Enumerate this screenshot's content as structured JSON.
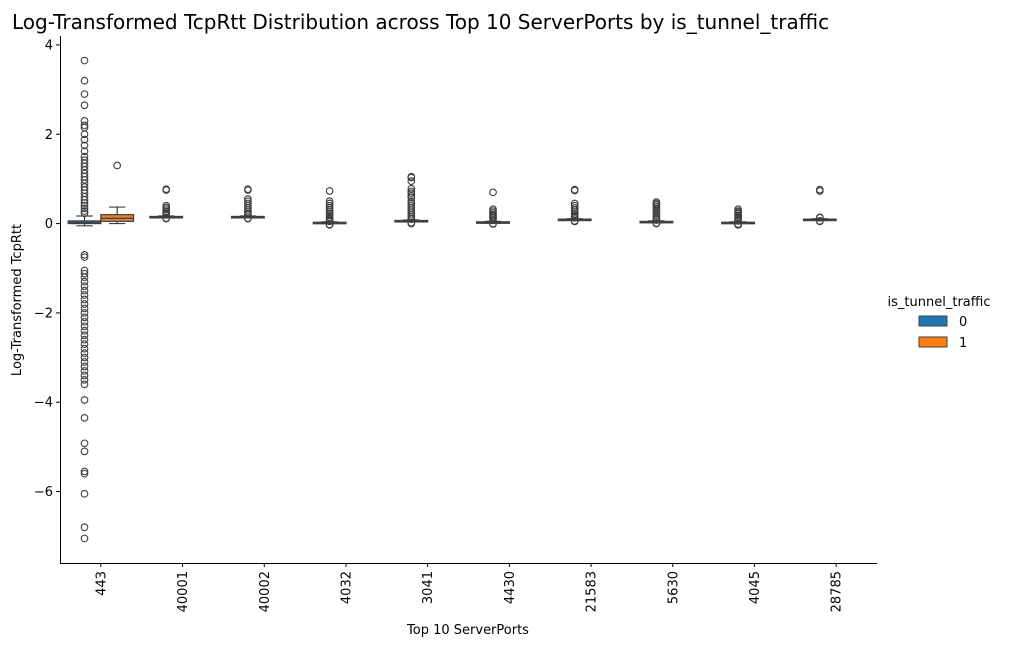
{
  "chart_data": {
    "type": "box",
    "title": "Log-Transformed TcpRtt Distribution across Top 10 ServerPorts by is_tunnel_traffic",
    "xlabel": "Top 10 ServerPorts",
    "ylabel": "Log-Transformed TcpRtt",
    "categories": [
      "443",
      "40001",
      "40002",
      "4032",
      "3041",
      "4430",
      "21583",
      "5630",
      "4045",
      "28785"
    ],
    "ylim": [
      -7.6,
      4.2
    ],
    "yticks": [
      -6,
      -4,
      -2,
      0,
      2,
      4
    ],
    "yticklabels": [
      "−6",
      "−4",
      "−2",
      "0",
      "2",
      "4"
    ],
    "grid": false,
    "legend": {
      "title": "is_tunnel_traffic",
      "placement": "right",
      "entries": [
        {
          "label": "0",
          "color": "#1f77b4"
        },
        {
          "label": "1",
          "color": "#ff7f0e"
        }
      ]
    },
    "series": [
      {
        "name": "0",
        "color": "#2f6f9f",
        "boxes": [
          {
            "category": "443",
            "whisker_low": -0.05,
            "q1": 0.0,
            "median": 0.02,
            "q3": 0.06,
            "whisker_high": 0.17,
            "outliers": [
              3.65,
              3.2,
              2.9,
              2.65,
              2.3,
              2.2,
              2.15,
              2.0,
              1.88,
              1.75,
              1.62,
              1.5,
              1.42,
              1.35,
              1.28,
              1.2,
              1.12,
              1.05,
              0.98,
              0.9,
              0.82,
              0.75,
              0.68,
              0.6,
              0.53,
              0.46,
              0.4,
              0.34,
              0.28,
              0.23,
              -0.7,
              -0.75,
              -1.05,
              -1.12,
              -1.2,
              -1.3,
              -1.4,
              -1.5,
              -1.6,
              -1.7,
              -1.8,
              -1.9,
              -2.0,
              -2.1,
              -2.2,
              -2.3,
              -2.4,
              -2.5,
              -2.6,
              -2.7,
              -2.8,
              -2.9,
              -3.0,
              -3.1,
              -3.2,
              -3.3,
              -3.4,
              -3.5,
              -3.6,
              -3.95,
              -4.35,
              -4.92,
              -5.1,
              -5.55,
              -5.6,
              -6.05,
              -6.8,
              -7.05
            ]
          },
          {
            "category": "40001",
            "whisker_low": 0.13,
            "q1": 0.14,
            "median": 0.15,
            "q3": 0.16,
            "whisker_high": 0.17,
            "outliers": [
              0.77,
              0.75,
              0.4,
              0.36,
              0.32,
              0.28,
              0.25,
              0.22,
              0.2,
              0.12,
              0.11
            ]
          },
          {
            "category": "40002",
            "whisker_low": 0.13,
            "q1": 0.14,
            "median": 0.15,
            "q3": 0.16,
            "whisker_high": 0.17,
            "outliers": [
              0.77,
              0.75,
              0.55,
              0.5,
              0.45,
              0.4,
              0.35,
              0.3,
              0.26,
              0.22,
              0.2,
              0.12,
              0.11
            ]
          },
          {
            "category": "4032",
            "whisker_low": 0.0,
            "q1": 0.01,
            "median": 0.02,
            "q3": 0.03,
            "whisker_high": 0.04,
            "outliers": [
              0.73,
              0.5,
              0.45,
              0.4,
              0.35,
              0.3,
              0.26,
              0.22,
              0.18,
              0.14,
              0.1,
              0.07,
              0.05,
              -0.02,
              -0.03
            ]
          },
          {
            "category": "3041",
            "whisker_low": 0.04,
            "q1": 0.05,
            "median": 0.06,
            "q3": 0.07,
            "whisker_high": 0.08,
            "outliers": [
              1.05,
              1.03,
              0.95,
              0.78,
              0.72,
              0.68,
              0.62,
              0.58,
              0.5,
              0.45,
              0.4,
              0.35,
              0.3,
              0.25,
              0.2,
              0.16,
              0.12,
              0.1,
              0.02,
              0.0
            ]
          },
          {
            "category": "4430",
            "whisker_low": 0.01,
            "q1": 0.02,
            "median": 0.03,
            "q3": 0.04,
            "whisker_high": 0.05,
            "outliers": [
              0.7,
              0.32,
              0.28,
              0.24,
              0.2,
              0.17,
              0.14,
              0.1,
              0.07,
              0.0,
              -0.01
            ]
          },
          {
            "category": "21583",
            "whisker_low": 0.07,
            "q1": 0.08,
            "median": 0.09,
            "q3": 0.1,
            "whisker_high": 0.11,
            "outliers": [
              0.76,
              0.74,
              0.45,
              0.4,
              0.35,
              0.3,
              0.26,
              0.22,
              0.18,
              0.15,
              0.13,
              0.06,
              0.05
            ]
          },
          {
            "category": "5630",
            "whisker_low": 0.02,
            "q1": 0.03,
            "median": 0.04,
            "q3": 0.05,
            "whisker_high": 0.06,
            "outliers": [
              0.48,
              0.45,
              0.42,
              0.38,
              0.34,
              0.3,
              0.26,
              0.22,
              0.18,
              0.14,
              0.1,
              0.08,
              0.01,
              0.0
            ]
          },
          {
            "category": "4045",
            "whisker_low": 0.0,
            "q1": 0.01,
            "median": 0.02,
            "q3": 0.03,
            "whisker_high": 0.04,
            "outliers": [
              0.32,
              0.28,
              0.25,
              0.22,
              0.18,
              0.15,
              0.12,
              0.09,
              0.06,
              -0.01,
              -0.02,
              -0.03
            ]
          },
          {
            "category": "28785",
            "whisker_low": 0.07,
            "q1": 0.08,
            "median": 0.09,
            "q3": 0.1,
            "whisker_high": 0.11,
            "outliers": [
              0.76,
              0.73,
              0.14,
              0.13,
              0.06,
              0.05
            ]
          }
        ]
      },
      {
        "name": "1",
        "color": "#e8822e",
        "boxes": [
          {
            "category": "443",
            "whisker_low": 0.0,
            "q1": 0.05,
            "median": 0.12,
            "q3": 0.2,
            "whisker_high": 0.37,
            "outliers": [
              1.3
            ]
          }
        ]
      }
    ]
  }
}
